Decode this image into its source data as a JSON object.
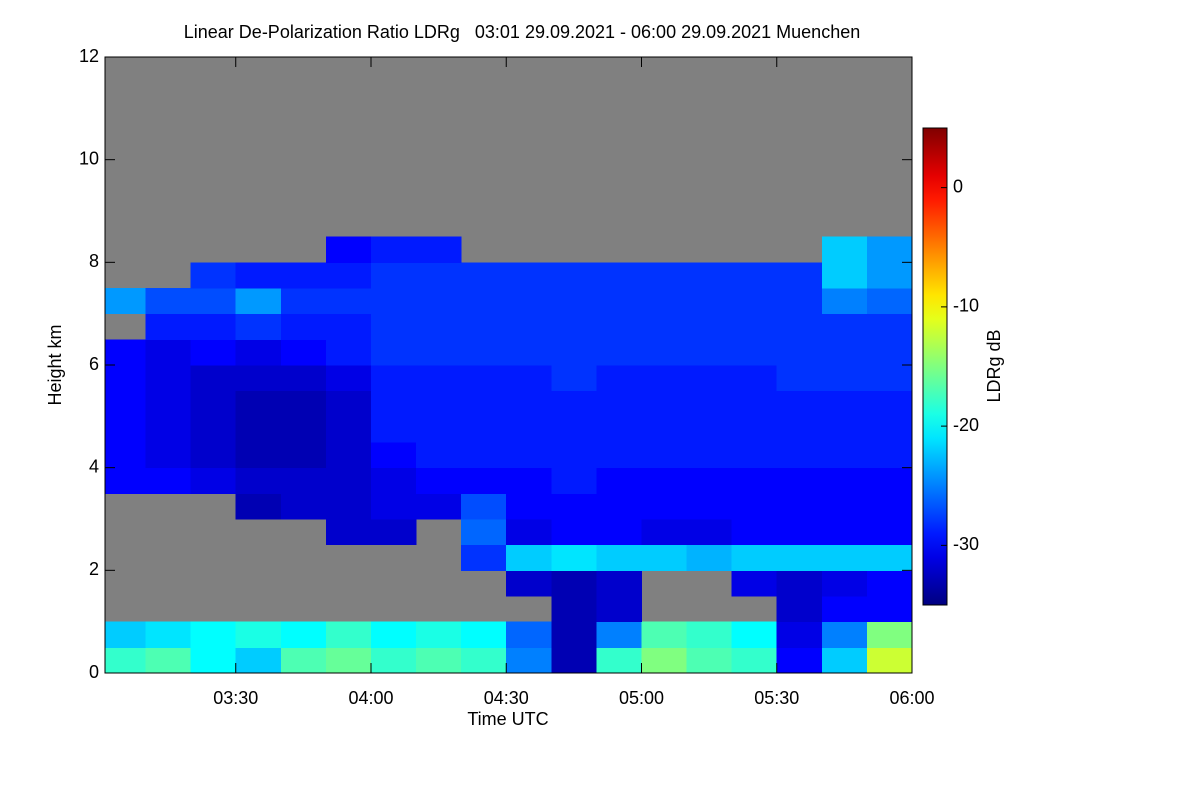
{
  "chart_data": {
    "type": "heatmap",
    "title": "Linear De-Polarization Ratio LDRg   03:01 29.09.2021 - 06:00 29.09.2021 Muenchen",
    "x_label": "Time UTC",
    "y_label": "Height km",
    "colorbar_label": "LDRg dB",
    "colormap": "jet",
    "missing_color": "#808080",
    "xlim": [
      3.0167,
      6.0
    ],
    "xticks": [
      {
        "value": 3.5,
        "label": "03:30"
      },
      {
        "value": 4.0,
        "label": "04:00"
      },
      {
        "value": 4.5,
        "label": "04:30"
      },
      {
        "value": 5.0,
        "label": "05:00"
      },
      {
        "value": 5.5,
        "label": "05:30"
      },
      {
        "value": 6.0,
        "label": "06:00"
      }
    ],
    "ylim": [
      0,
      12
    ],
    "yticks": [
      0,
      2,
      4,
      6,
      8,
      10,
      12
    ],
    "zlim": [
      -35,
      5
    ],
    "zticks": [
      0,
      -10,
      -20,
      -30
    ],
    "x_bins": [
      3.0167,
      3.1667,
      3.3333,
      3.5,
      3.6667,
      3.8333,
      4.0,
      4.1667,
      4.3333,
      4.5,
      4.6667,
      4.8333,
      5.0,
      5.1667,
      5.3333,
      5.5,
      5.6667,
      5.8333,
      6.0
    ],
    "y_bins": [
      0,
      0.5,
      1,
      1.5,
      2,
      2.5,
      3,
      3.5,
      4,
      4.5,
      5,
      5.5,
      6,
      6.5,
      7,
      7.5,
      8,
      8.5,
      9,
      9.5,
      10,
      10.5,
      11,
      11.5,
      12
    ],
    "z": [
      [
        -18,
        -17,
        -20,
        -22,
        -17,
        -16,
        -18,
        -17,
        -18,
        -25,
        -33,
        -18,
        -15,
        -17,
        -18,
        -30,
        -22,
        -12
      ],
      [
        -22,
        -21,
        -20,
        -19,
        -20,
        -18,
        -20,
        -19,
        -20,
        -26,
        -33,
        -25,
        -17,
        -18,
        -20,
        -31,
        -25,
        -15
      ],
      [
        null,
        null,
        null,
        null,
        null,
        null,
        null,
        null,
        null,
        null,
        -33,
        -32,
        null,
        null,
        null,
        -32,
        -30,
        -30
      ],
      [
        null,
        null,
        null,
        null,
        null,
        null,
        null,
        null,
        null,
        -32,
        -33,
        -32,
        null,
        null,
        -31,
        -32,
        -31,
        -30
      ],
      [
        null,
        null,
        null,
        null,
        null,
        null,
        null,
        null,
        -28,
        -22,
        -21,
        -22,
        -22,
        -23,
        -22,
        -22,
        -22,
        -22
      ],
      [
        null,
        null,
        null,
        null,
        null,
        -32,
        -32,
        null,
        -26,
        -31,
        -30,
        -30,
        -31,
        -31,
        -30,
        -30,
        -30,
        -30
      ],
      [
        null,
        null,
        null,
        -33,
        -32,
        -32,
        -31,
        -31,
        -27,
        -30,
        -30,
        -30,
        -30,
        -30,
        -30,
        -30,
        -30,
        -30
      ],
      [
        -30,
        -30,
        -31,
        -32,
        -32,
        -32,
        -31,
        -30,
        -30,
        -30,
        -29,
        -30,
        -30,
        -30,
        -30,
        -30,
        -30,
        -30
      ],
      [
        -30,
        -31,
        -32,
        -33,
        -33,
        -32,
        -30,
        -29,
        -29,
        -29,
        -29,
        -29,
        -29,
        -29,
        -29,
        -29,
        -29,
        -29
      ],
      [
        -30,
        -31,
        -32,
        -33,
        -33,
        -32,
        -29,
        -29,
        -29,
        -29,
        -29,
        -29,
        -29,
        -29,
        -29,
        -29,
        -29,
        -29
      ],
      [
        -30,
        -31,
        -32,
        -33,
        -33,
        -32,
        -29,
        -29,
        -29,
        -29,
        -29,
        -29,
        -29,
        -29,
        -29,
        -29,
        -29,
        -29
      ],
      [
        -30,
        -31,
        -32,
        -32,
        -32,
        -31,
        -29,
        -29,
        -29,
        -29,
        -28,
        -29,
        -29,
        -29,
        -29,
        -28,
        -28,
        -28
      ],
      [
        -30,
        -31,
        -30,
        -31,
        -30,
        -29,
        -28,
        -28,
        -28,
        -28,
        -28,
        -28,
        -28,
        -28,
        -28,
        -28,
        -28,
        -28
      ],
      [
        null,
        -29,
        -29,
        -28,
        -29,
        -29,
        -28,
        -28,
        -28,
        -28,
        -28,
        -28,
        -28,
        -28,
        -28,
        -28,
        -28,
        -28
      ],
      [
        -24,
        -27,
        -27,
        -24,
        -28,
        -28,
        -28,
        -28,
        -28,
        -28,
        -28,
        -28,
        -28,
        -28,
        -28,
        -28,
        -25,
        -26
      ],
      [
        null,
        null,
        -28,
        -29,
        -29,
        -29,
        -28,
        -28,
        -28,
        -28,
        -28,
        -28,
        -28,
        -28,
        -28,
        -28,
        -22,
        -24
      ],
      [
        null,
        null,
        null,
        null,
        null,
        -30,
        -29,
        -29,
        null,
        null,
        null,
        null,
        null,
        null,
        null,
        null,
        -22,
        -24
      ],
      [
        null,
        null,
        null,
        null,
        null,
        null,
        null,
        null,
        null,
        null,
        null,
        null,
        null,
        null,
        null,
        null,
        null,
        null
      ],
      [
        null,
        null,
        null,
        null,
        null,
        null,
        null,
        null,
        null,
        null,
        null,
        null,
        null,
        null,
        null,
        null,
        null,
        null
      ],
      [
        null,
        null,
        null,
        null,
        null,
        null,
        null,
        null,
        null,
        null,
        null,
        null,
        null,
        null,
        null,
        null,
        null,
        null
      ],
      [
        null,
        null,
        null,
        null,
        null,
        null,
        null,
        null,
        null,
        null,
        null,
        null,
        null,
        null,
        null,
        null,
        null,
        null
      ],
      [
        null,
        null,
        null,
        null,
        null,
        null,
        null,
        null,
        null,
        null,
        null,
        null,
        null,
        null,
        null,
        null,
        null,
        null
      ],
      [
        null,
        null,
        null,
        null,
        null,
        null,
        null,
        null,
        null,
        null,
        null,
        null,
        null,
        null,
        null,
        null,
        null,
        null
      ],
      [
        null,
        null,
        null,
        null,
        null,
        null,
        null,
        null,
        null,
        null,
        null,
        null,
        null,
        null,
        null,
        null,
        null,
        null
      ]
    ]
  }
}
